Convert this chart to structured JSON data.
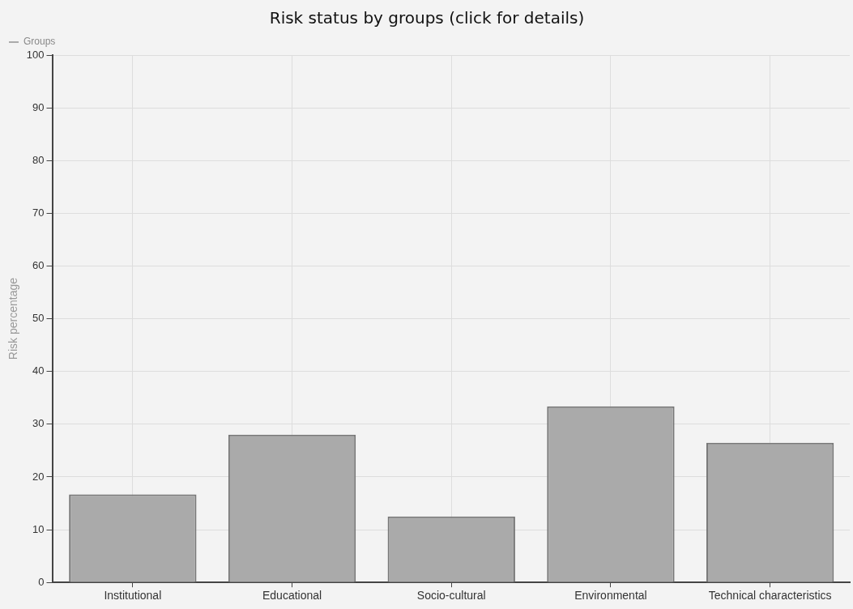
{
  "chart_data": {
    "type": "bar",
    "title": "Risk status by groups (click for details)",
    "ylabel": "Risk percentage",
    "categories": [
      "Institutional",
      "Educational",
      "Socio-cultural",
      "Environmental",
      "Technical characteristics"
    ],
    "series": [
      {
        "name": "Groups",
        "color": "#aaaaaa",
        "values": [
          16.7,
          28.0,
          12.5,
          33.4,
          26.5
        ]
      }
    ],
    "ylim": [
      0,
      100
    ],
    "yticks": [
      0,
      10,
      20,
      30,
      40,
      50,
      60,
      70,
      80,
      90,
      100
    ],
    "grid": true,
    "legend": "top left"
  }
}
